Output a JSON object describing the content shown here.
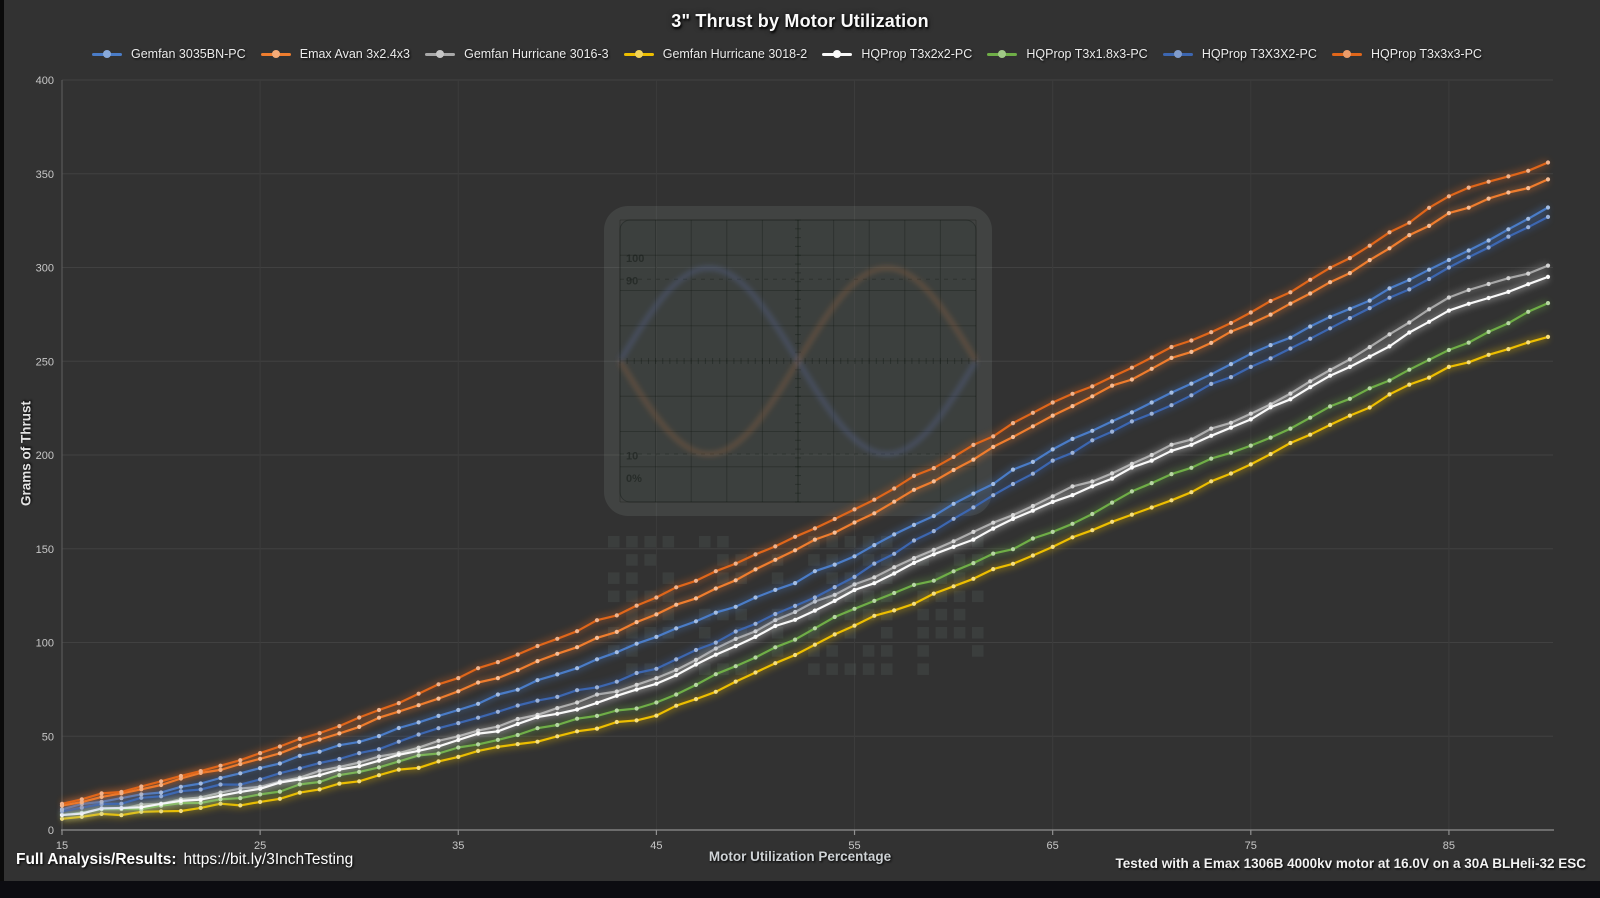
{
  "title": "3\" Thrust by Motor Utilization",
  "axes": {
    "y_label": "Grams of Thrust",
    "x_label": "Motor Utilization Percentage",
    "y_ticks": [
      0,
      50,
      100,
      150,
      200,
      250,
      300,
      350,
      400
    ],
    "x_ticks": [
      15,
      25,
      35,
      45,
      55,
      65,
      75,
      85
    ]
  },
  "footer": {
    "left_label": "Full Analysis/Results:",
    "left_url": "https://bit.ly/3InchTesting",
    "right_note": "Tested with a Emax 1306B 4000kv motor at 16.0V on a 30A BLHeli-32 ESC"
  },
  "watermark": {
    "scope_labels": [
      "100",
      "90",
      "10",
      "0%"
    ]
  },
  "colors": {
    "background": "#323232",
    "grid": "#414141",
    "grid_vertical": "#3c3c3c",
    "axis": "#909090",
    "tick_text": "#c7c7c7"
  },
  "chart_data": {
    "type": "line",
    "title": "3\" Thrust by Motor Utilization",
    "xlabel": "Motor Utilization Percentage",
    "ylabel": "Grams of Thrust",
    "xlim": [
      15,
      90
    ],
    "ylim": [
      0,
      400
    ],
    "grid": true,
    "legend_position": "top",
    "markers": "point-per-percent",
    "x": [
      15,
      20,
      25,
      30,
      35,
      40,
      45,
      50,
      55,
      60,
      65,
      70,
      75,
      80,
      85,
      90
    ],
    "series": [
      {
        "name": "Gemfan 3035BN-PC",
        "color": "#4a7cc7",
        "values": [
          11,
          20,
          33,
          47,
          64,
          83,
          103,
          124,
          146,
          174,
          203,
          228,
          254,
          278,
          304,
          332
        ]
      },
      {
        "name": "Emax Avan 3x2.4x3",
        "color": "#ef7d2e",
        "values": [
          13,
          24,
          38,
          55,
          74,
          94,
          115,
          139,
          164,
          192,
          221,
          246,
          270,
          297,
          329,
          347
        ]
      },
      {
        "name": "Gemfan Hurricane 3016-3",
        "color": "#a8a8a8",
        "values": [
          8,
          14,
          23,
          36,
          50,
          65,
          81,
          106,
          131,
          154,
          178,
          200,
          222,
          251,
          284,
          301
        ]
      },
      {
        "name": "Gemfan Hurricane 3018-2",
        "color": "#edbe00",
        "values": [
          6,
          10,
          15,
          26,
          39,
          50,
          61,
          84,
          109,
          130,
          151,
          172,
          195,
          221,
          247,
          263
        ]
      },
      {
        "name": "HQProp T3x2x2-PC",
        "color": "#f8f8f8",
        "values": [
          8,
          14,
          22,
          34,
          48,
          62,
          78,
          103,
          128,
          151,
          175,
          197,
          219,
          247,
          277,
          295
        ]
      },
      {
        "name": "HQProp T3x1.8x3-PC",
        "color": "#6fae47",
        "values": [
          8,
          13,
          19,
          31,
          44,
          56,
          68,
          92,
          118,
          138,
          159,
          185,
          205,
          230,
          256,
          281
        ]
      },
      {
        "name": "HQProp T3X3X2-PC",
        "color": "#3c66b0",
        "values": [
          10,
          18,
          27,
          41,
          57,
          71,
          86,
          110,
          135,
          166,
          197,
          222,
          247,
          273,
          300,
          327
        ]
      },
      {
        "name": "HQProp T3x3x3-PC",
        "color": "#e0661a",
        "values": [
          14,
          26,
          41,
          60,
          81,
          102,
          124,
          147,
          171,
          199,
          228,
          252,
          276,
          305,
          338,
          356
        ]
      }
    ]
  }
}
